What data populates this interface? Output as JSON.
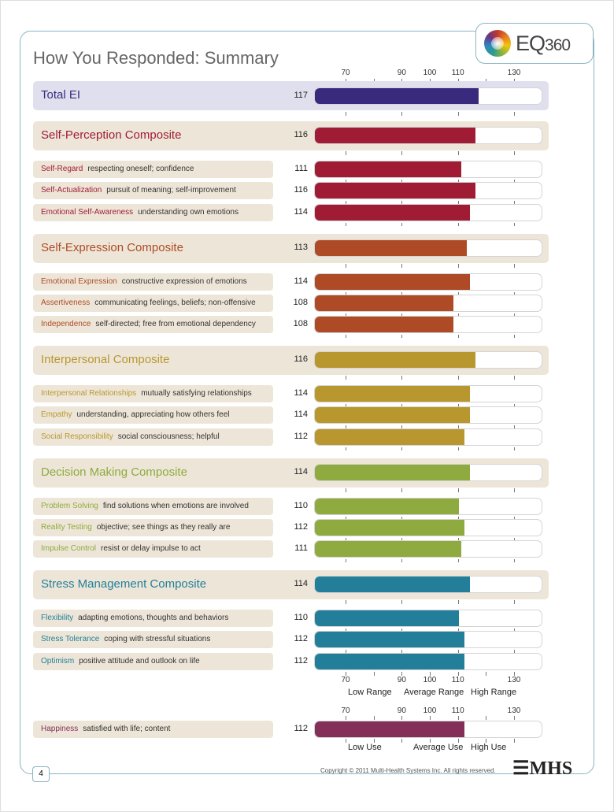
{
  "title": "How You Responded: Summary",
  "logo": {
    "brand": "EQ",
    "num": "360"
  },
  "scale": {
    "min_value": 70,
    "max_value": 130,
    "ticks": [
      70,
      90,
      100,
      110,
      130
    ],
    "range_labels": [
      "Low Range",
      "Average Range",
      "High Range"
    ],
    "use_labels": [
      "Low Use",
      "Average Use",
      "High Use"
    ]
  },
  "total": {
    "label": "Total EI",
    "score": 117,
    "color": "#3a2a7e",
    "bg": "#e0dfee"
  },
  "composites": [
    {
      "label": "Self-Perception Composite",
      "score": 116,
      "color": "#a01c34",
      "subs": [
        {
          "name": "Self-Regard",
          "desc": "respecting oneself; confidence",
          "score": 111
        },
        {
          "name": "Self-Actualization",
          "desc": "pursuit of meaning; self-improvement",
          "score": 116
        },
        {
          "name": "Emotional Self-Awareness",
          "desc": "understanding own emotions",
          "score": 114
        }
      ]
    },
    {
      "label": "Self-Expression Composite",
      "score": 113,
      "color": "#ae4b26",
      "subs": [
        {
          "name": "Emotional Expression",
          "desc": "constructive expression of emotions",
          "score": 114
        },
        {
          "name": "Assertiveness",
          "desc": "communicating feelings, beliefs; non-offensive",
          "score": 108
        },
        {
          "name": "Independence",
          "desc": "self-directed; free from emotional dependency",
          "score": 108
        }
      ]
    },
    {
      "label": "Interpersonal Composite",
      "score": 116,
      "color": "#b9972f",
      "subs": [
        {
          "name": "Interpersonal Relationships",
          "desc": "mutually satisfying relationships",
          "score": 114
        },
        {
          "name": "Empathy",
          "desc": "understanding, appreciating how others feel",
          "score": 114
        },
        {
          "name": "Social Responsibility",
          "desc": "social consciousness; helpful",
          "score": 112
        }
      ]
    },
    {
      "label": "Decision Making Composite",
      "score": 114,
      "color": "#8faa3e",
      "subs": [
        {
          "name": "Problem Solving",
          "desc": "find solutions when emotions are involved",
          "score": 110
        },
        {
          "name": "Reality Testing",
          "desc": "objective; see things as they really are",
          "score": 112
        },
        {
          "name": "Impulse Control",
          "desc": "resist or delay impulse to act",
          "score": 111
        }
      ]
    },
    {
      "label": "Stress Management Composite",
      "score": 114,
      "color": "#237f99",
      "subs": [
        {
          "name": "Flexibility",
          "desc": "adapting emotions, thoughts and behaviors",
          "score": 110
        },
        {
          "name": "Stress Tolerance",
          "desc": "coping with stressful situations",
          "score": 112
        },
        {
          "name": "Optimism",
          "desc": "positive attitude and outlook on life",
          "score": 112
        }
      ]
    }
  ],
  "happiness": {
    "name": "Happiness",
    "desc": "satisfied with life; content",
    "score": 112,
    "color": "#842f57"
  },
  "footer": {
    "copyright": "Copyright © 2011 Multi-Health Systems Inc. All rights reserved.",
    "publisher": "MHS",
    "page": "4"
  }
}
